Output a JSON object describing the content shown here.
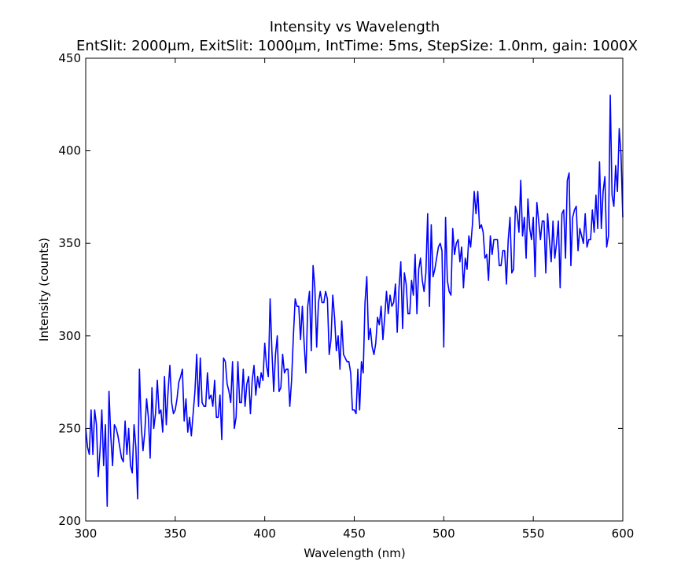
{
  "chart_data": {
    "type": "line",
    "title": "Intensity vs Wavelength",
    "subtitle": "EntSlit: 2000μm, ExitSlit: 1000μm, IntTime: 5ms, StepSize: 1.0nm, gain: 1000X",
    "xlabel": "Wavelength (nm)",
    "ylabel": "Intensity (counts)",
    "xlim": [
      300,
      600
    ],
    "ylim": [
      200,
      450
    ],
    "xticks": [
      300,
      350,
      400,
      450,
      500,
      550,
      600
    ],
    "yticks": [
      200,
      250,
      300,
      350,
      400,
      450
    ],
    "grid": false,
    "line_color": "#0000ff",
    "series": [
      {
        "x": [
          300,
          301,
          302,
          303,
          304,
          305,
          306,
          307,
          308,
          309,
          310,
          311,
          312,
          313,
          314,
          315,
          316,
          317,
          318,
          319,
          320,
          321,
          322,
          323,
          324,
          325,
          326,
          327,
          328,
          329,
          330,
          331,
          332,
          333,
          334,
          335,
          336,
          337,
          338,
          339,
          340,
          341,
          342,
          343,
          344,
          345,
          346,
          347,
          348,
          349,
          350,
          351,
          352,
          353,
          354,
          355,
          356,
          357,
          358,
          359,
          360,
          361,
          362,
          363,
          364,
          365,
          366,
          367,
          368,
          369,
          370,
          371,
          372,
          373,
          374,
          375,
          376,
          377,
          378,
          379,
          380,
          381,
          382,
          383,
          384,
          385,
          386,
          387,
          388,
          389,
          390,
          391,
          392,
          393,
          394,
          395,
          396,
          397,
          398,
          399,
          400,
          401,
          402,
          403,
          404,
          405,
          406,
          407,
          408,
          409,
          410,
          411,
          412,
          413,
          414,
          415,
          416,
          417,
          418,
          419,
          420,
          421,
          422,
          423,
          424,
          425,
          426,
          427,
          428,
          429,
          430,
          431,
          432,
          433,
          434,
          435,
          436,
          437,
          438,
          439,
          440,
          441,
          442,
          443,
          444,
          445,
          446,
          447,
          448,
          449,
          450,
          451,
          452,
          453,
          454,
          455,
          456,
          457,
          458,
          459,
          460,
          461,
          462,
          463,
          464,
          465,
          466,
          467,
          468,
          469,
          470,
          471,
          472,
          473,
          474,
          475,
          476,
          477,
          478,
          479,
          480,
          481,
          482,
          483,
          484,
          485,
          486,
          487,
          488,
          489,
          490,
          491,
          492,
          493,
          494,
          495,
          496,
          497,
          498,
          499,
          500,
          501,
          502,
          503,
          504,
          505,
          506,
          507,
          508,
          509,
          510,
          511,
          512,
          513,
          514,
          515,
          516,
          517,
          518,
          519,
          520,
          521,
          522,
          523,
          524,
          525,
          526,
          527,
          528,
          529,
          530,
          531,
          532,
          533,
          534,
          535,
          536,
          537,
          538,
          539,
          540,
          541,
          542,
          543,
          544,
          545,
          546,
          547,
          548,
          549,
          550,
          551,
          552,
          553,
          554,
          555,
          556,
          557,
          558,
          559,
          560,
          561,
          562,
          563,
          564,
          565,
          566,
          567,
          568,
          569,
          570,
          571,
          572,
          573,
          574,
          575,
          576,
          577,
          578,
          579,
          580,
          581,
          582,
          583,
          584,
          585,
          586,
          587,
          588,
          589,
          590,
          591,
          592,
          593,
          594,
          595,
          596,
          597,
          598,
          599,
          600
        ],
        "y": [
          250,
          240,
          236,
          260,
          236,
          260,
          252,
          224,
          238,
          260,
          230,
          252,
          208,
          270,
          246,
          230,
          252,
          250,
          246,
          240,
          234,
          232,
          254,
          236,
          250,
          230,
          226,
          252,
          240,
          212,
          282,
          252,
          238,
          248,
          266,
          256,
          234,
          272,
          250,
          258,
          276,
          258,
          260,
          248,
          278,
          252,
          270,
          284,
          264,
          258,
          260,
          266,
          275,
          278,
          282,
          254,
          266,
          248,
          256,
          246,
          258,
          270,
          290,
          262,
          288,
          264,
          262,
          262,
          280,
          266,
          268,
          262,
          276,
          256,
          256,
          268,
          244,
          288,
          286,
          274,
          270,
          264,
          286,
          250,
          256,
          286,
          264,
          264,
          282,
          262,
          274,
          278,
          258,
          276,
          284,
          268,
          278,
          272,
          280,
          276,
          296,
          284,
          278,
          320,
          292,
          270,
          290,
          300,
          270,
          272,
          290,
          280,
          282,
          282,
          262,
          276,
          300,
          320,
          316,
          316,
          298,
          316,
          296,
          280,
          316,
          324,
          292,
          338,
          326,
          294,
          318,
          324,
          318,
          318,
          324,
          320,
          290,
          298,
          322,
          310,
          292,
          300,
          282,
          308,
          290,
          288,
          286,
          286,
          280,
          260,
          260,
          258,
          282,
          260,
          286,
          280,
          318,
          332,
          298,
          304,
          294,
          290,
          296,
          310,
          306,
          316,
          298,
          310,
          324,
          312,
          322,
          316,
          318,
          328,
          302,
          326,
          340,
          304,
          334,
          328,
          312,
          312,
          330,
          322,
          344,
          312,
          336,
          342,
          330,
          324,
          334,
          366,
          316,
          360,
          332,
          336,
          342,
          348,
          350,
          346,
          294,
          364,
          330,
          324,
          322,
          358,
          344,
          350,
          352,
          340,
          348,
          326,
          342,
          336,
          354,
          348,
          360,
          378,
          366,
          378,
          358,
          360,
          356,
          342,
          344,
          330,
          354,
          344,
          352,
          352,
          352,
          338,
          338,
          346,
          346,
          328,
          352,
          364,
          334,
          336,
          370,
          366,
          356,
          384,
          354,
          364,
          342,
          374,
          358,
          352,
          364,
          332,
          372,
          362,
          352,
          362,
          362,
          334,
          366,
          352,
          340,
          362,
          342,
          350,
          362,
          326,
          366,
          368,
          342,
          384,
          388,
          338,
          364,
          368,
          370,
          346,
          358,
          354,
          350,
          366,
          348,
          352,
          352,
          368,
          356,
          376,
          358,
          394,
          358,
          378,
          386,
          348,
          354,
          430,
          376,
          370,
          392,
          378,
          412,
          398,
          364
        ]
      }
    ]
  }
}
